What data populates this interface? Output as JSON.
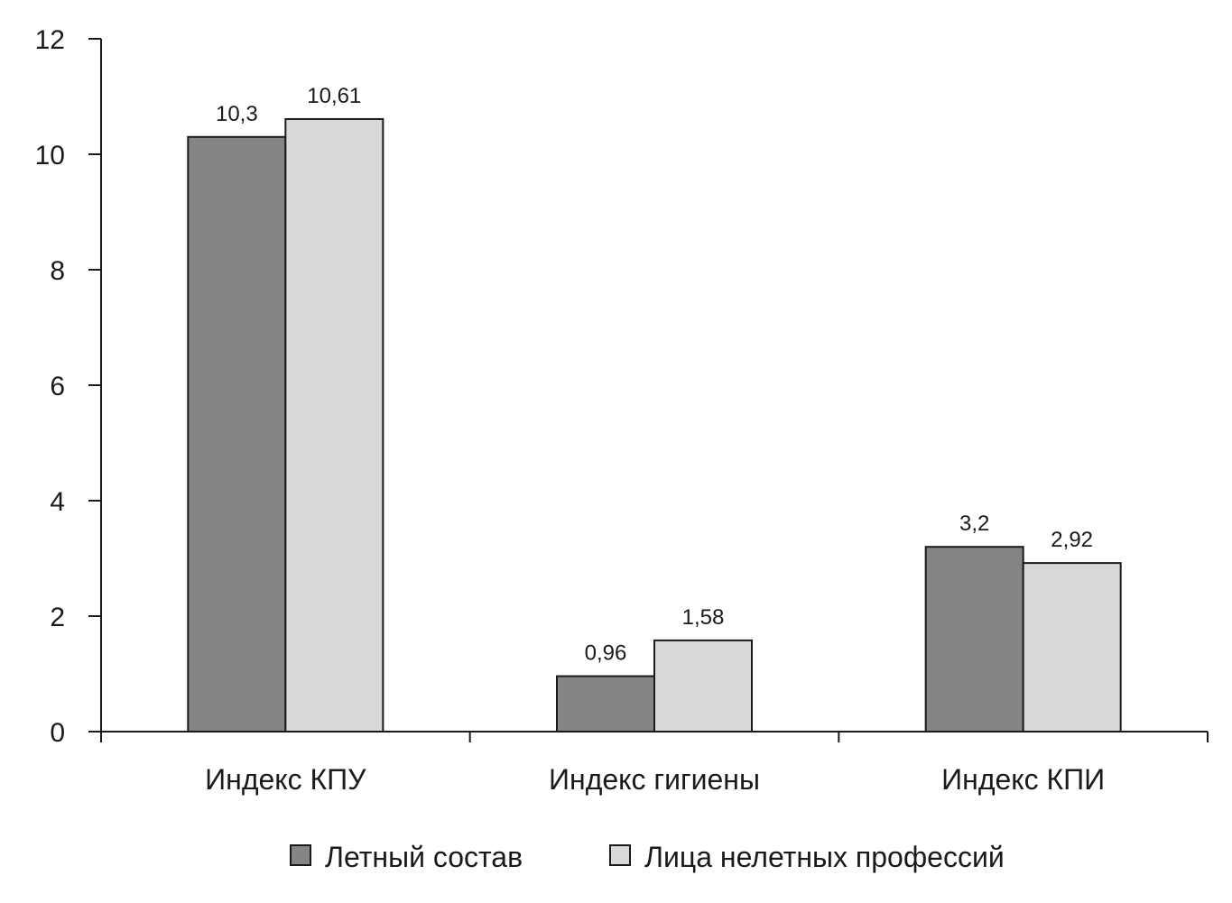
{
  "chart_data": {
    "type": "bar",
    "categories": [
      "Индекс КПУ",
      "Индекс гигиены",
      "Индекс КПИ"
    ],
    "series": [
      {
        "name": "Летный состав",
        "values": [
          10.3,
          0.96,
          3.2
        ],
        "labels": [
          "10,3",
          "0,96",
          "3,2"
        ],
        "color": "#858585"
      },
      {
        "name": "Лица нелетных профессий",
        "values": [
          10.61,
          1.58,
          2.92
        ],
        "labels": [
          "10,61",
          "1,58",
          "2,92"
        ],
        "color": "#d9d9d9"
      }
    ],
    "ylim": [
      0,
      12
    ],
    "yticks": [
      0,
      2,
      4,
      6,
      8,
      10,
      12
    ],
    "ytick_labels": [
      "0",
      "2",
      "4",
      "6",
      "8",
      "10",
      "12"
    ],
    "title": "",
    "xlabel": "",
    "ylabel": "",
    "grid": false,
    "legend_position": "bottom-center"
  }
}
